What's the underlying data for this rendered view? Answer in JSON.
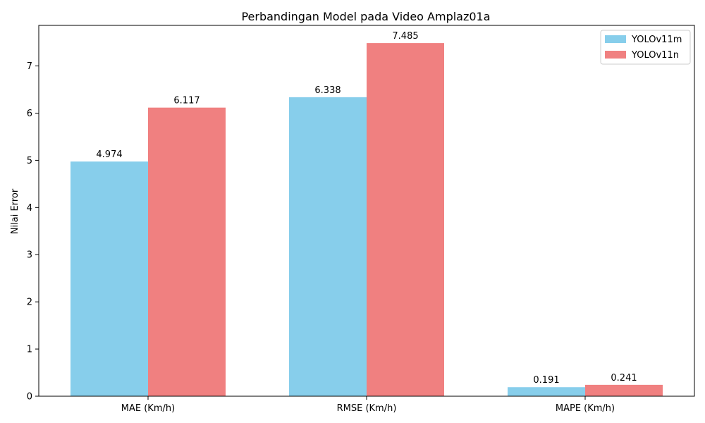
{
  "chart_data": {
    "type": "bar",
    "title": "Perbandingan Model pada Video Amplaz01a",
    "xlabel": "",
    "ylabel": "Nilai Error",
    "categories": [
      "MAE (Km/h)",
      "RMSE (Km/h)",
      "MAPE (Km/h)"
    ],
    "series": [
      {
        "name": "YOLOv11m",
        "values": [
          4.974,
          6.338,
          0.191
        ],
        "labels": [
          "4.974",
          "6.338",
          "0.191"
        ],
        "color": "#87ceeb"
      },
      {
        "name": "YOLOv11n",
        "values": [
          6.117,
          7.485,
          0.241
        ],
        "labels": [
          "6.117",
          "7.485",
          "0.241"
        ],
        "color": "#f08080"
      }
    ],
    "ylim": [
      0,
      7.86
    ],
    "yticks": [
      0,
      1,
      2,
      3,
      4,
      5,
      6,
      7
    ],
    "grid": false,
    "legend_position": "top-right"
  }
}
